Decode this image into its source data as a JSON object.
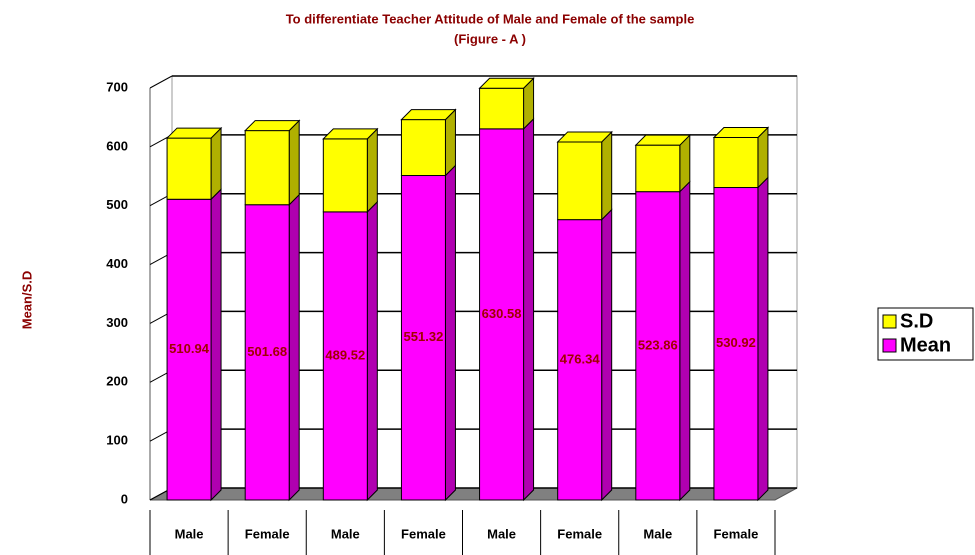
{
  "chart_data": {
    "type": "bar3d_stacked",
    "title": "To differentiate Teacher Attitude of Male and Female of the sample",
    "subtitle": "(Figure - A )",
    "y_label": "Mean/S.D",
    "categories": [
      "Male",
      "Female",
      "Male",
      "Female",
      "Male",
      "Female",
      "Male",
      "Female"
    ],
    "series": [
      {
        "name": "Mean",
        "color": "#ff00ff",
        "values": [
          510.94,
          501.68,
          489.52,
          551.32,
          630.58,
          476.34,
          523.86,
          530.92
        ]
      },
      {
        "name": "S.D",
        "color": "#ffff00",
        "values": [
          104,
          126,
          124,
          95,
          69,
          132,
          79,
          85
        ]
      }
    ],
    "ylim": [
      0,
      700
    ],
    "yticks": [
      0,
      100,
      200,
      300,
      400,
      500,
      600,
      700
    ],
    "grid": true,
    "legend": "right"
  }
}
